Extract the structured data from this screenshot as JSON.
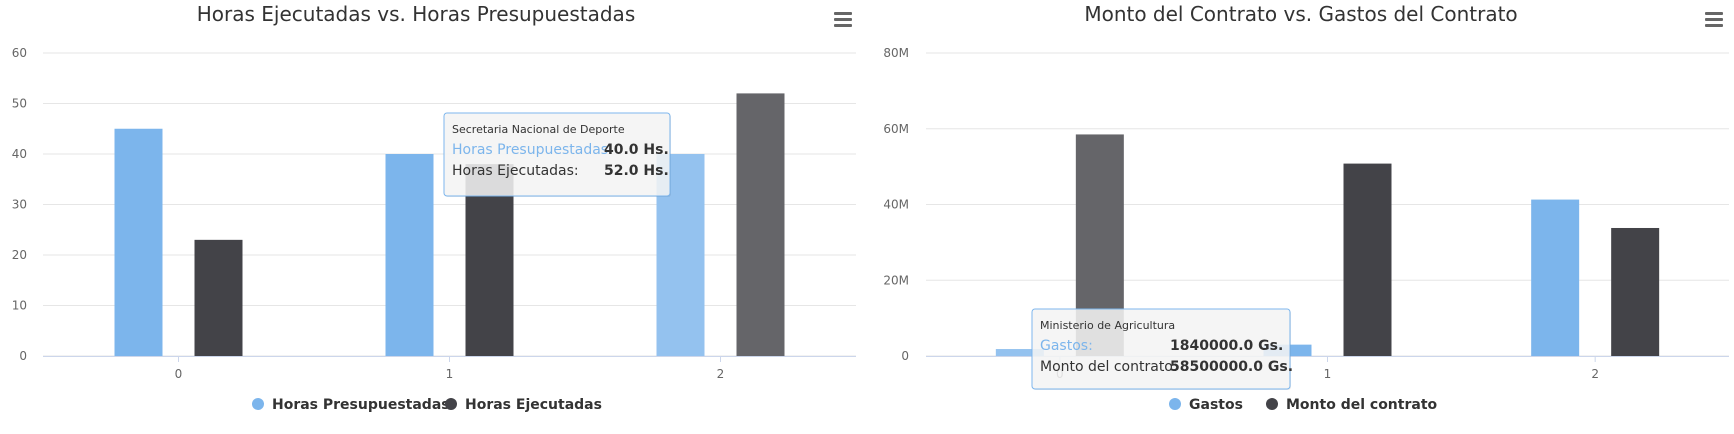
{
  "chart_data": [
    {
      "type": "bar",
      "title": "Horas Ejecutadas vs. Horas Presupuestadas",
      "xlabel": "",
      "ylabel": "",
      "categories": [
        "0",
        "1",
        "2"
      ],
      "ylim": [
        0,
        60
      ],
      "yticks": [
        "0",
        "10",
        "20",
        "30",
        "40",
        "50",
        "60"
      ],
      "ytick_values": [
        0,
        10,
        20,
        30,
        40,
        50,
        60
      ],
      "grid": true,
      "legend": "bottom-center",
      "series": [
        {
          "name": "Horas Presupuestadas",
          "values": [
            45,
            40,
            40
          ],
          "color": "#7cb5ec"
        },
        {
          "name": "Horas Ejecutadas",
          "values": [
            23,
            38,
            52
          ],
          "color": "#434348"
        }
      ],
      "hovered": {
        "category_index": 2
      },
      "tooltip": {
        "title": "Secretaria Nacional de Deporte",
        "rows": [
          {
            "label": "Horas Presupuestadas:",
            "value": "40.0 Hs.",
            "color": "#7cb5ec"
          },
          {
            "label": "Horas Ejecutadas:",
            "value": "52.0 Hs.",
            "color": "#333333"
          }
        ]
      }
    },
    {
      "type": "bar",
      "title": "Monto del Contrato vs. Gastos del Contrato",
      "xlabel": "",
      "ylabel": "",
      "categories": [
        "0",
        "1",
        "2"
      ],
      "ylim": [
        0,
        80000000
      ],
      "yticks": [
        "0",
        "20M",
        "40M",
        "60M",
        "80M"
      ],
      "ytick_values": [
        0,
        20000000,
        40000000,
        60000000,
        80000000
      ],
      "grid": true,
      "legend": "bottom-center",
      "series": [
        {
          "name": "Gastos",
          "values": [
            1840000,
            3000000,
            41300000
          ],
          "color": "#7cb5ec"
        },
        {
          "name": "Monto del contrato",
          "values": [
            58500000,
            50800000,
            33800000
          ],
          "color": "#434348"
        }
      ],
      "hovered": {
        "category_index": 0
      },
      "tooltip": {
        "title": "Ministerio de Agricultura",
        "rows": [
          {
            "label": "Gastos:",
            "value": "1840000.0 Gs.",
            "color": "#7cb5ec"
          },
          {
            "label": "Monto del contrato:",
            "value": "58500000.0 Gs.",
            "color": "#333333"
          }
        ]
      }
    }
  ],
  "icons": {
    "menu": "hamburger-menu-icon",
    "legend_marker": "circle"
  }
}
